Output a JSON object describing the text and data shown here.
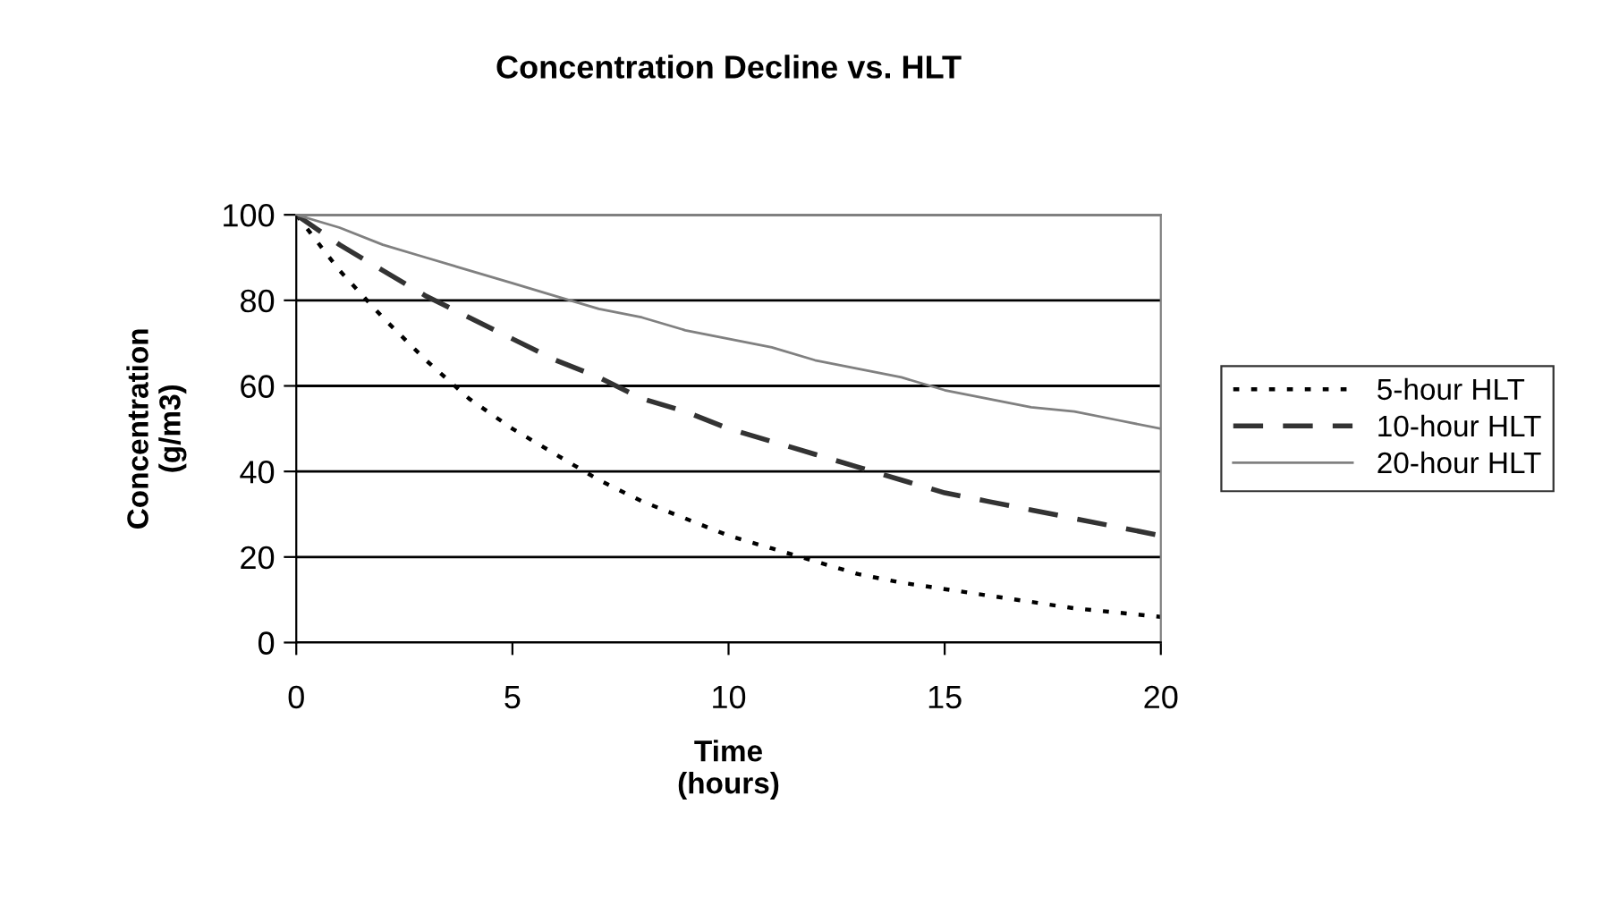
{
  "chart_data": {
    "type": "line",
    "title": "Concentration Decline vs. HLT",
    "xlabel": "Time\n(hours)",
    "ylabel": "Concentration\n(g/m3)",
    "x": [
      0,
      1,
      2,
      3,
      4,
      5,
      6,
      7,
      8,
      9,
      10,
      11,
      12,
      13,
      14,
      15,
      16,
      17,
      18,
      19,
      20
    ],
    "series": [
      {
        "name": "5-hour HLT",
        "color": "#000000",
        "line_style": "dotted",
        "values": [
          100,
          87,
          76,
          66,
          57,
          50,
          44,
          38,
          33,
          29,
          25,
          22,
          19,
          16,
          14,
          12.5,
          11,
          9.5,
          8,
          7,
          6
        ]
      },
      {
        "name": "10-hour HLT",
        "color": "#333333",
        "line_style": "dashed",
        "values": [
          100,
          93,
          87,
          81,
          76,
          71,
          66,
          62,
          57,
          54,
          50,
          47,
          44,
          41,
          38,
          35,
          33,
          31,
          29,
          27,
          25
        ]
      },
      {
        "name": "20-hour HLT",
        "color": "#808080",
        "line_style": "solid",
        "values": [
          100,
          97,
          93,
          90,
          87,
          84,
          81,
          78,
          76,
          73,
          71,
          69,
          66,
          64,
          62,
          59,
          57,
          55,
          54,
          52,
          50
        ]
      }
    ],
    "xlim": [
      0,
      20
    ],
    "xticks": [
      0,
      5,
      10,
      15,
      20
    ],
    "ylim": [
      0,
      100
    ],
    "yticks": [
      0,
      20,
      40,
      60,
      80,
      100
    ],
    "grid": "y",
    "legend": "right"
  }
}
